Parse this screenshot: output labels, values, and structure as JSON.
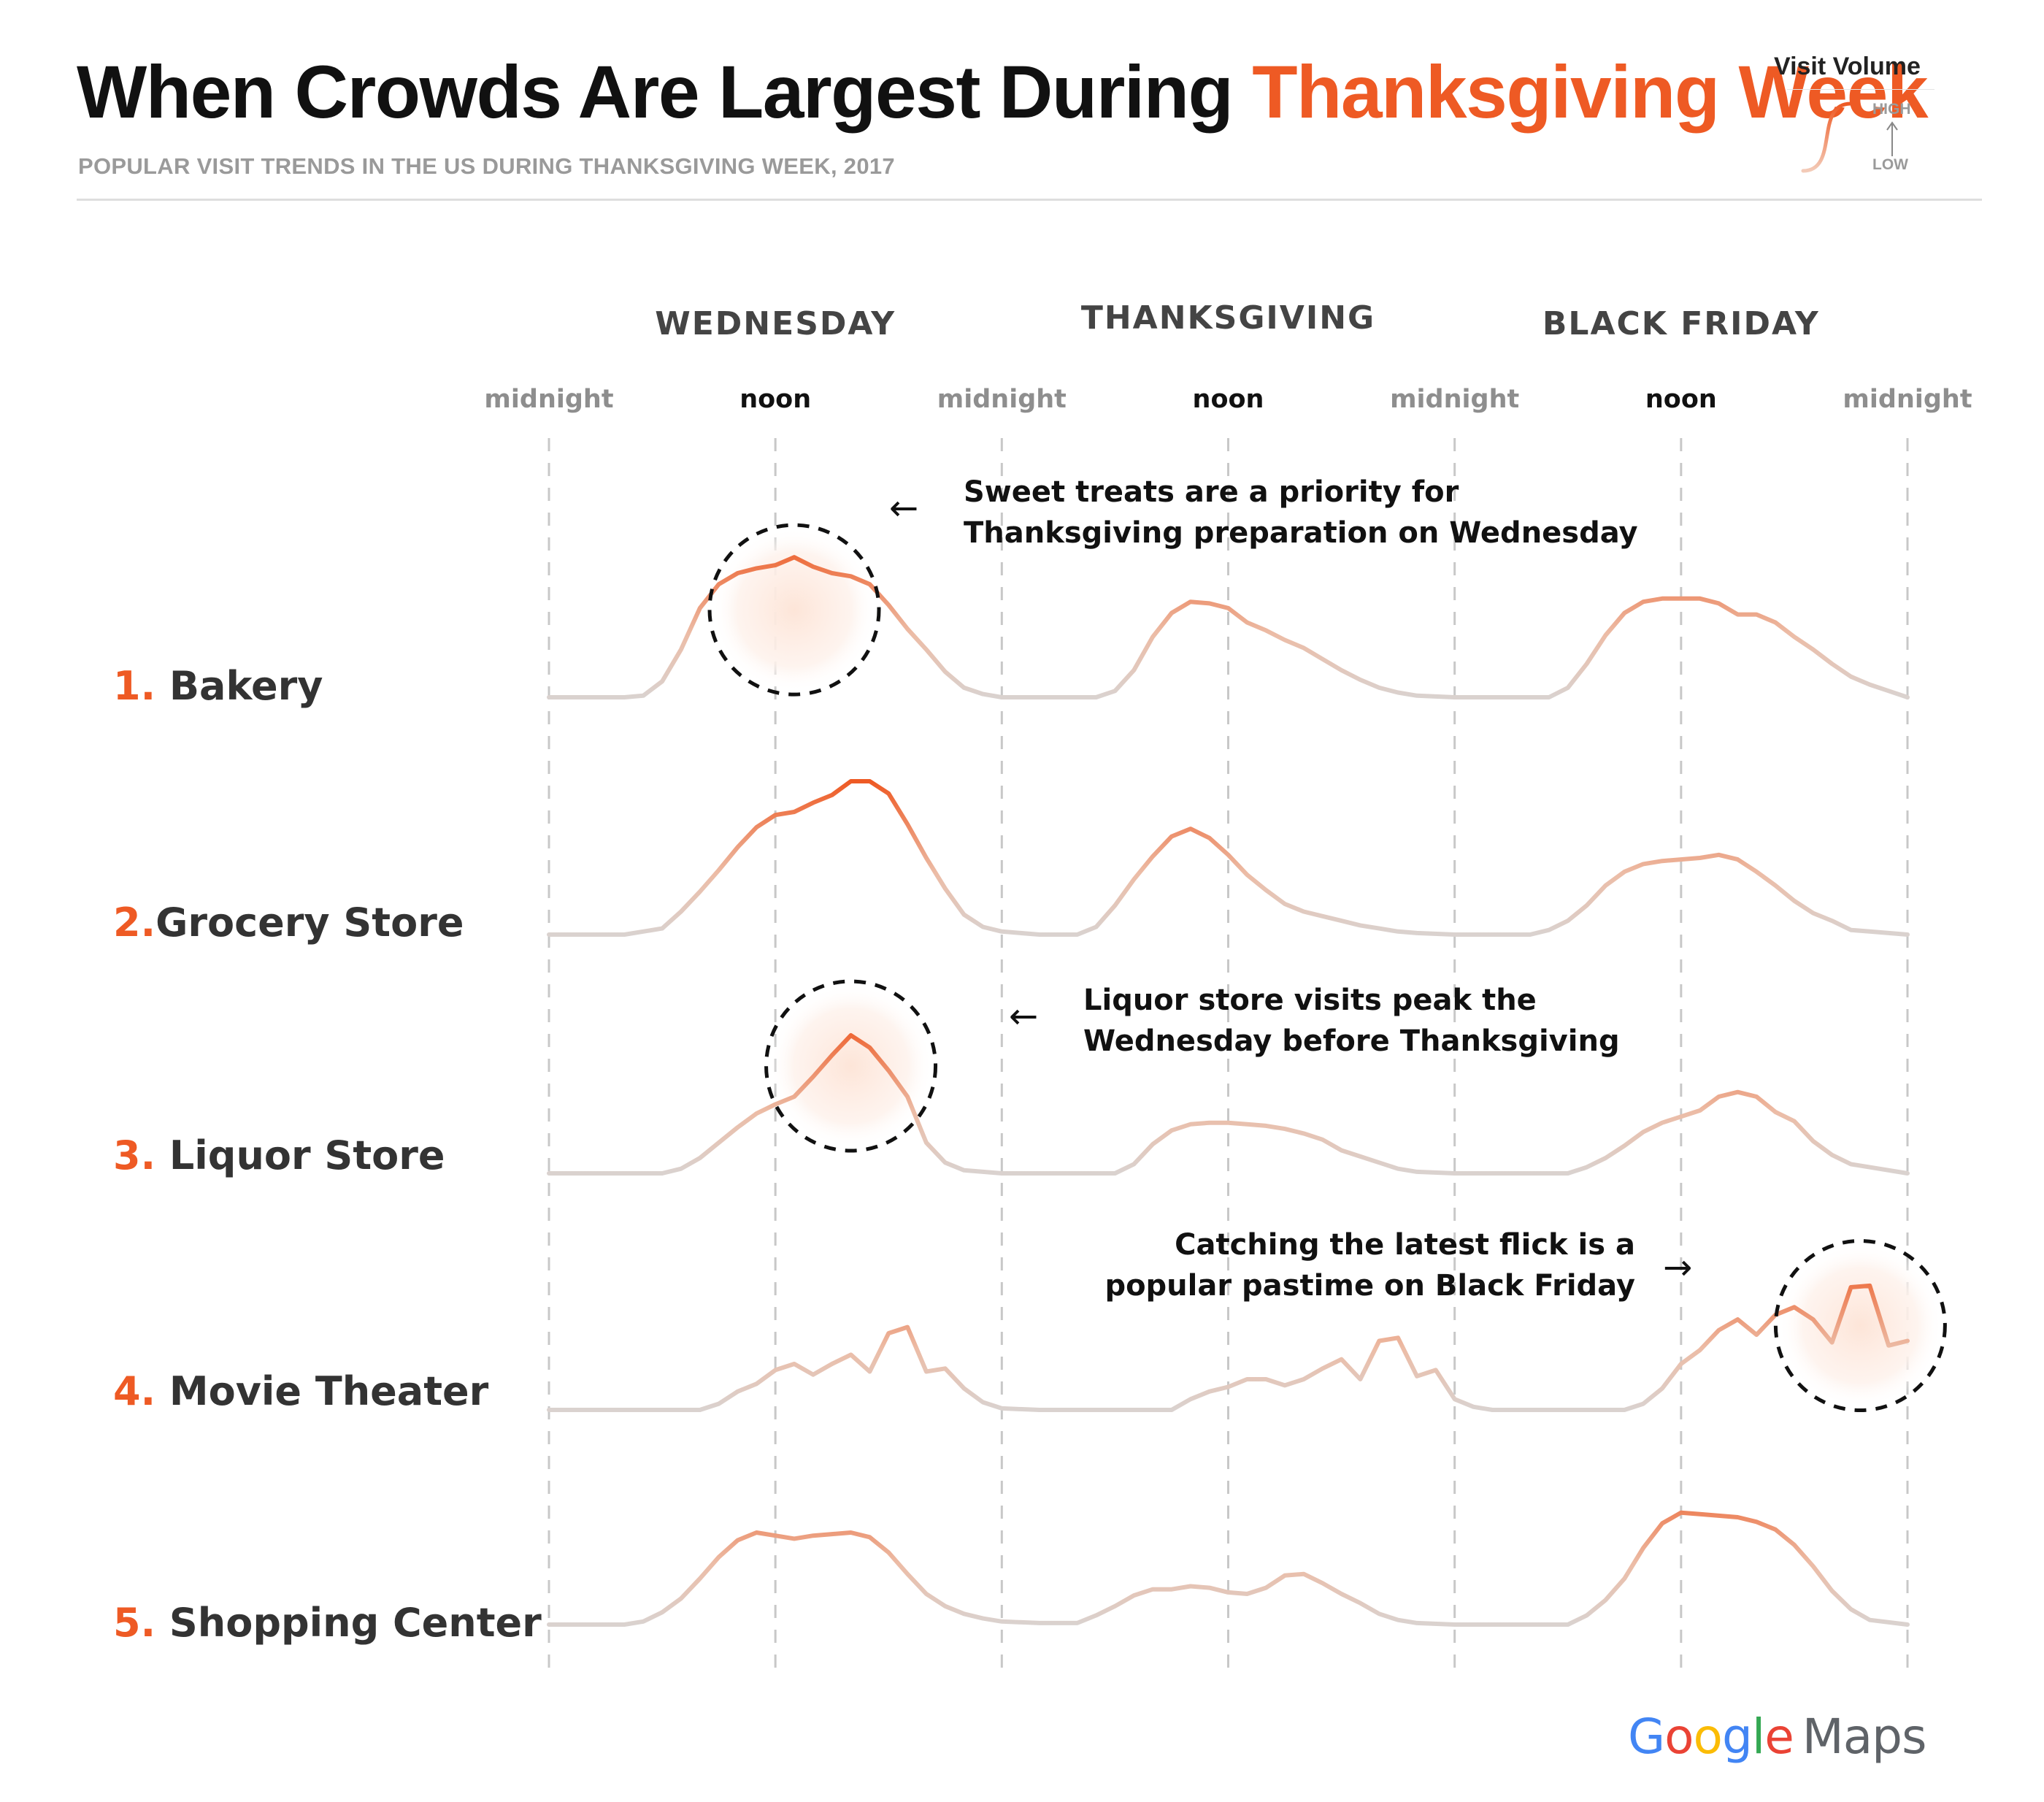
{
  "title": {
    "prefix": "When Crowds Are Largest During",
    "highlight": "Thanksgiving Week"
  },
  "subtitle": "POPULAR VISIT TRENDS IN THE US DURING THANKSGIVING WEEK, 2017",
  "legend": {
    "title": "Visit Volume",
    "high": "HIGH",
    "low": "LOW"
  },
  "colors": {
    "accent": "#ee5a24",
    "low_line": "#d8d2d0",
    "gridline": "#c8c8c8",
    "text": "#333333"
  },
  "annotations": [
    {
      "lines": [
        "Sweet treats are a priority for",
        "Thanksgiving preparation on Wednesday"
      ],
      "arrow": "←",
      "row": "Bakery"
    },
    {
      "lines": [
        "Liquor store visits peak the",
        "Wednesday before Thanksgiving"
      ],
      "arrow": "←",
      "row": "Liquor Store"
    },
    {
      "lines": [
        "Catching the latest flick is a",
        "popular pastime on Black Friday"
      ],
      "arrow": "→",
      "row": "Movie Theater"
    }
  ],
  "brand": {
    "google": "Google",
    "maps": "Maps"
  },
  "chart_data": {
    "type": "line",
    "title": "When Crowds Are Largest During Thanksgiving Week",
    "subtitle": "POPULAR VISIT TRENDS IN THE US DURING THANKSGIVING WEEK, 2017",
    "sections": [
      "WEDNESDAY",
      "THANKSGIVING",
      "BLACK FRIDAY"
    ],
    "x_ticks": [
      "midnight",
      "noon",
      "midnight",
      "noon",
      "midnight",
      "noon",
      "midnight"
    ],
    "x_unit": "hours since Wednesday midnight",
    "xlim": [
      0,
      72
    ],
    "ylim": [
      0,
      1
    ],
    "grid": true,
    "series": [
      {
        "rank": "1.",
        "name": "Bakery",
        "points": [
          [
            0,
            0
          ],
          [
            4,
            0
          ],
          [
            5,
            0.01
          ],
          [
            6,
            0.1
          ],
          [
            7,
            0.3
          ],
          [
            8,
            0.56
          ],
          [
            9,
            0.71
          ],
          [
            10,
            0.78
          ],
          [
            11,
            0.81
          ],
          [
            12,
            0.83
          ],
          [
            13,
            0.88
          ],
          [
            14,
            0.82
          ],
          [
            15,
            0.78
          ],
          [
            16,
            0.76
          ],
          [
            17,
            0.71
          ],
          [
            18,
            0.58
          ],
          [
            19,
            0.43
          ],
          [
            20,
            0.3
          ],
          [
            21,
            0.16
          ],
          [
            22,
            0.06
          ],
          [
            23,
            0.02
          ],
          [
            24,
            0
          ],
          [
            29,
            0
          ],
          [
            30,
            0.04
          ],
          [
            31,
            0.17
          ],
          [
            32,
            0.38
          ],
          [
            33,
            0.53
          ],
          [
            34,
            0.6
          ],
          [
            35,
            0.59
          ],
          [
            36,
            0.56
          ],
          [
            37,
            0.47
          ],
          [
            38,
            0.42
          ],
          [
            39,
            0.36
          ],
          [
            40,
            0.31
          ],
          [
            41,
            0.24
          ],
          [
            42,
            0.17
          ],
          [
            43,
            0.11
          ],
          [
            44,
            0.06
          ],
          [
            45,
            0.03
          ],
          [
            46,
            0.01
          ],
          [
            48,
            0
          ],
          [
            53,
            0
          ],
          [
            54,
            0.06
          ],
          [
            55,
            0.21
          ],
          [
            56,
            0.39
          ],
          [
            57,
            0.53
          ],
          [
            58,
            0.6
          ],
          [
            59,
            0.62
          ],
          [
            60,
            0.62
          ],
          [
            61,
            0.62
          ],
          [
            62,
            0.59
          ],
          [
            63,
            0.52
          ],
          [
            64,
            0.52
          ],
          [
            65,
            0.47
          ],
          [
            66,
            0.38
          ],
          [
            67,
            0.3
          ],
          [
            68,
            0.21
          ],
          [
            69,
            0.13
          ],
          [
            70,
            0.08
          ],
          [
            71,
            0.04
          ],
          [
            72,
            0
          ]
        ]
      },
      {
        "rank": "2.",
        "name": "Grocery Store",
        "points": [
          [
            0,
            0
          ],
          [
            4,
            0
          ],
          [
            6,
            0.04
          ],
          [
            7,
            0.15
          ],
          [
            8,
            0.28
          ],
          [
            9,
            0.42
          ],
          [
            10,
            0.57
          ],
          [
            11,
            0.7
          ],
          [
            12,
            0.78
          ],
          [
            13,
            0.8
          ],
          [
            14,
            0.86
          ],
          [
            15,
            0.91
          ],
          [
            16,
            1.0
          ],
          [
            17,
            1.0
          ],
          [
            18,
            0.92
          ],
          [
            19,
            0.72
          ],
          [
            20,
            0.5
          ],
          [
            21,
            0.3
          ],
          [
            22,
            0.13
          ],
          [
            23,
            0.05
          ],
          [
            24,
            0.02
          ],
          [
            26,
            0
          ],
          [
            28,
            0
          ],
          [
            29,
            0.05
          ],
          [
            30,
            0.19
          ],
          [
            31,
            0.36
          ],
          [
            32,
            0.51
          ],
          [
            33,
            0.64
          ],
          [
            34,
            0.69
          ],
          [
            35,
            0.63
          ],
          [
            36,
            0.52
          ],
          [
            37,
            0.39
          ],
          [
            38,
            0.29
          ],
          [
            39,
            0.2
          ],
          [
            40,
            0.15
          ],
          [
            41,
            0.12
          ],
          [
            42,
            0.09
          ],
          [
            43,
            0.06
          ],
          [
            44,
            0.04
          ],
          [
            45,
            0.02
          ],
          [
            46,
            0.01
          ],
          [
            48,
            0
          ],
          [
            52,
            0
          ],
          [
            53,
            0.03
          ],
          [
            54,
            0.09
          ],
          [
            55,
            0.19
          ],
          [
            56,
            0.32
          ],
          [
            57,
            0.41
          ],
          [
            58,
            0.46
          ],
          [
            59,
            0.48
          ],
          [
            60,
            0.49
          ],
          [
            61,
            0.5
          ],
          [
            62,
            0.52
          ],
          [
            63,
            0.49
          ],
          [
            64,
            0.41
          ],
          [
            65,
            0.32
          ],
          [
            66,
            0.22
          ],
          [
            67,
            0.14
          ],
          [
            68,
            0.09
          ],
          [
            69,
            0.03
          ],
          [
            70,
            0.02
          ],
          [
            72,
            0
          ]
        ]
      },
      {
        "rank": "3.",
        "name": "Liquor Store",
        "points": [
          [
            0,
            0
          ],
          [
            6,
            0
          ],
          [
            7,
            0.03
          ],
          [
            8,
            0.1
          ],
          [
            9,
            0.2
          ],
          [
            10,
            0.3
          ],
          [
            11,
            0.39
          ],
          [
            12,
            0.45
          ],
          [
            13,
            0.5
          ],
          [
            14,
            0.63
          ],
          [
            15,
            0.77
          ],
          [
            16,
            0.9
          ],
          [
            17,
            0.82
          ],
          [
            18,
            0.67
          ],
          [
            19,
            0.5
          ],
          [
            20,
            0.2
          ],
          [
            21,
            0.07
          ],
          [
            22,
            0.02
          ],
          [
            24,
            0
          ],
          [
            30,
            0
          ],
          [
            31,
            0.06
          ],
          [
            32,
            0.19
          ],
          [
            33,
            0.28
          ],
          [
            34,
            0.32
          ],
          [
            35,
            0.33
          ],
          [
            36,
            0.33
          ],
          [
            37,
            0.32
          ],
          [
            38,
            0.31
          ],
          [
            39,
            0.29
          ],
          [
            40,
            0.26
          ],
          [
            41,
            0.22
          ],
          [
            42,
            0.15
          ],
          [
            43,
            0.11
          ],
          [
            44,
            0.07
          ],
          [
            45,
            0.03
          ],
          [
            46,
            0.01
          ],
          [
            48,
            0
          ],
          [
            54,
            0
          ],
          [
            55,
            0.04
          ],
          [
            56,
            0.1
          ],
          [
            57,
            0.18
          ],
          [
            58,
            0.27
          ],
          [
            59,
            0.33
          ],
          [
            60,
            0.37
          ],
          [
            61,
            0.41
          ],
          [
            62,
            0.5
          ],
          [
            63,
            0.53
          ],
          [
            64,
            0.5
          ],
          [
            65,
            0.4
          ],
          [
            66,
            0.34
          ],
          [
            67,
            0.21
          ],
          [
            68,
            0.12
          ],
          [
            69,
            0.06
          ],
          [
            72,
            0
          ]
        ]
      },
      {
        "rank": "4.",
        "name": "Movie Theater",
        "points": [
          [
            0,
            0
          ],
          [
            8,
            0
          ],
          [
            9,
            0.04
          ],
          [
            10,
            0.12
          ],
          [
            11,
            0.17
          ],
          [
            12,
            0.26
          ],
          [
            13,
            0.3
          ],
          [
            14,
            0.23
          ],
          [
            15,
            0.3
          ],
          [
            16,
            0.36
          ],
          [
            17,
            0.25
          ],
          [
            18,
            0.5
          ],
          [
            19,
            0.54
          ],
          [
            20,
            0.25
          ],
          [
            21,
            0.27
          ],
          [
            22,
            0.14
          ],
          [
            23,
            0.05
          ],
          [
            24,
            0.01
          ],
          [
            26,
            0
          ],
          [
            33,
            0
          ],
          [
            34,
            0.07
          ],
          [
            35,
            0.12
          ],
          [
            36,
            0.15
          ],
          [
            37,
            0.2
          ],
          [
            38,
            0.2
          ],
          [
            39,
            0.16
          ],
          [
            40,
            0.2
          ],
          [
            41,
            0.27
          ],
          [
            42,
            0.33
          ],
          [
            43,
            0.2
          ],
          [
            44,
            0.45
          ],
          [
            45,
            0.47
          ],
          [
            46,
            0.22
          ],
          [
            47,
            0.26
          ],
          [
            48,
            0.07
          ],
          [
            49,
            0.02
          ],
          [
            50,
            0
          ],
          [
            57,
            0
          ],
          [
            58,
            0.04
          ],
          [
            59,
            0.14
          ],
          [
            60,
            0.3
          ],
          [
            61,
            0.39
          ],
          [
            62,
            0.52
          ],
          [
            63,
            0.59
          ],
          [
            64,
            0.49
          ],
          [
            65,
            0.62
          ],
          [
            66,
            0.67
          ],
          [
            67,
            0.59
          ],
          [
            68,
            0.44
          ],
          [
            69,
            0.8
          ],
          [
            70,
            0.81
          ],
          [
            71,
            0.42
          ],
          [
            72,
            0.45
          ]
        ]
      },
      {
        "rank": "5.",
        "name": "Shopping Center",
        "points": [
          [
            0,
            0
          ],
          [
            4,
            0
          ],
          [
            5,
            0.02
          ],
          [
            6,
            0.08
          ],
          [
            7,
            0.17
          ],
          [
            8,
            0.3
          ],
          [
            9,
            0.44
          ],
          [
            10,
            0.55
          ],
          [
            11,
            0.6
          ],
          [
            12,
            0.58
          ],
          [
            13,
            0.56
          ],
          [
            14,
            0.58
          ],
          [
            15,
            0.59
          ],
          [
            16,
            0.6
          ],
          [
            17,
            0.57
          ],
          [
            18,
            0.47
          ],
          [
            19,
            0.33
          ],
          [
            20,
            0.2
          ],
          [
            21,
            0.12
          ],
          [
            22,
            0.07
          ],
          [
            23,
            0.04
          ],
          [
            24,
            0.02
          ],
          [
            26,
            0.01
          ],
          [
            28,
            0.01
          ],
          [
            29,
            0.06
          ],
          [
            30,
            0.12
          ],
          [
            31,
            0.19
          ],
          [
            32,
            0.23
          ],
          [
            33,
            0.23
          ],
          [
            34,
            0.25
          ],
          [
            35,
            0.24
          ],
          [
            36,
            0.21
          ],
          [
            37,
            0.2
          ],
          [
            38,
            0.24
          ],
          [
            39,
            0.32
          ],
          [
            40,
            0.33
          ],
          [
            41,
            0.27
          ],
          [
            42,
            0.2
          ],
          [
            43,
            0.14
          ],
          [
            44,
            0.07
          ],
          [
            45,
            0.03
          ],
          [
            46,
            0.01
          ],
          [
            48,
            0
          ],
          [
            54,
            0
          ],
          [
            55,
            0.06
          ],
          [
            56,
            0.16
          ],
          [
            57,
            0.3
          ],
          [
            58,
            0.5
          ],
          [
            59,
            0.66
          ],
          [
            60,
            0.73
          ],
          [
            61,
            0.72
          ],
          [
            62,
            0.71
          ],
          [
            63,
            0.7
          ],
          [
            64,
            0.67
          ],
          [
            65,
            0.62
          ],
          [
            66,
            0.52
          ],
          [
            67,
            0.38
          ],
          [
            68,
            0.22
          ],
          [
            69,
            0.1
          ],
          [
            70,
            0.03
          ],
          [
            72,
            0
          ]
        ]
      }
    ]
  }
}
